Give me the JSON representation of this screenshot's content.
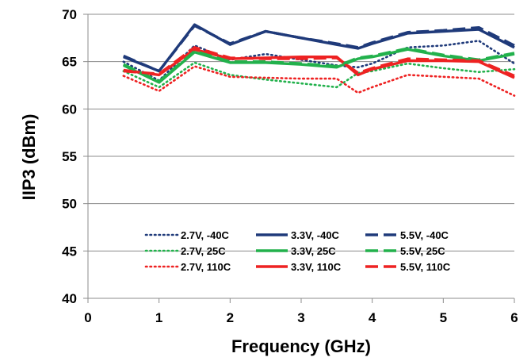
{
  "chart_data": {
    "type": "line",
    "title": "",
    "xlabel": "Frequency (GHz)",
    "ylabel": "IIP3 (dBm)",
    "xlim": [
      0,
      6
    ],
    "ylim": [
      40,
      70
    ],
    "xticks": [
      0,
      1,
      2,
      3,
      4,
      5,
      6
    ],
    "yticks": [
      40,
      45,
      50,
      55,
      60,
      65,
      70
    ],
    "xtick_labels": [
      "0",
      "1",
      "2",
      "3",
      "4",
      "5",
      "6"
    ],
    "ytick_labels": [
      "40",
      "45",
      "50",
      "55",
      "60",
      "65",
      "70"
    ],
    "grid": "horizontal",
    "legend_position": "bottom-center",
    "series": [
      {
        "name": "2.7V, -40C",
        "color": "#1F3A7A",
        "style": "dotted",
        "x": [
          0.5,
          1.0,
          1.5,
          2.0,
          2.5,
          3.0,
          3.5,
          3.8,
          4.0,
          4.5,
          5.0,
          5.5,
          6.0
        ],
        "y": [
          65.0,
          63.0,
          66.7,
          65.2,
          65.8,
          65.2,
          64.6,
          64.4,
          64.8,
          66.5,
          66.7,
          67.2,
          64.8
        ]
      },
      {
        "name": "3.3V, -40C",
        "color": "#1F3A7A",
        "style": "solid",
        "x": [
          0.5,
          1.0,
          1.5,
          2.0,
          2.5,
          3.0,
          3.5,
          3.8,
          4.0,
          4.5,
          5.0,
          5.5,
          6.0
        ],
        "y": [
          65.5,
          64.0,
          68.9,
          66.8,
          68.2,
          67.5,
          66.8,
          66.4,
          66.9,
          68.0,
          68.2,
          68.4,
          66.5
        ]
      },
      {
        "name": "5.5V, -40C",
        "color": "#1F3A7A",
        "style": "dashed",
        "x": [
          0.5,
          1.0,
          1.5,
          2.0,
          2.5,
          3.0,
          3.5,
          3.8,
          4.0,
          4.5,
          5.0,
          5.5,
          6.0
        ],
        "y": [
          65.6,
          64.0,
          68.8,
          66.9,
          68.2,
          67.5,
          66.9,
          66.5,
          67.0,
          68.1,
          68.3,
          68.6,
          66.7
        ]
      },
      {
        "name": "2.7V, 25C",
        "color": "#22B14C",
        "style": "dotted",
        "x": [
          0.5,
          1.0,
          1.5,
          2.0,
          2.5,
          3.0,
          3.5,
          3.8,
          4.0,
          4.5,
          5.0,
          5.5,
          6.0
        ],
        "y": [
          64.0,
          62.3,
          64.9,
          63.6,
          63.1,
          62.7,
          62.3,
          63.8,
          64.0,
          64.8,
          64.3,
          63.9,
          64.2
        ]
      },
      {
        "name": "3.3V, 25C",
        "color": "#22B14C",
        "style": "solid",
        "x": [
          0.5,
          1.0,
          1.5,
          2.0,
          2.5,
          3.0,
          3.5,
          3.8,
          4.0,
          4.5,
          5.0,
          5.5,
          6.0
        ],
        "y": [
          64.6,
          62.8,
          66.0,
          64.9,
          64.9,
          64.7,
          64.4,
          65.3,
          65.5,
          66.3,
          65.6,
          65.1,
          65.8
        ]
      },
      {
        "name": "5.5V, 25C",
        "color": "#22B14C",
        "style": "dashed",
        "x": [
          0.5,
          1.0,
          1.5,
          2.0,
          2.5,
          3.0,
          3.5,
          3.8,
          4.0,
          4.5,
          5.0,
          5.5,
          6.0
        ],
        "y": [
          64.7,
          62.9,
          66.1,
          65.0,
          65.0,
          64.8,
          64.5,
          65.4,
          65.6,
          66.4,
          65.7,
          65.2,
          65.9
        ]
      },
      {
        "name": "2.7V, 110C",
        "color": "#EE2222",
        "style": "dotted",
        "x": [
          0.5,
          1.0,
          1.5,
          2.0,
          2.5,
          3.0,
          3.5,
          3.8,
          4.0,
          4.5,
          5.0,
          5.5,
          6.0
        ],
        "y": [
          63.5,
          61.9,
          64.5,
          63.4,
          63.3,
          63.2,
          63.2,
          61.7,
          62.3,
          63.6,
          63.4,
          63.2,
          61.4
        ]
      },
      {
        "name": "3.3V, 110C",
        "color": "#EE2222",
        "style": "solid",
        "x": [
          0.5,
          1.0,
          1.5,
          2.0,
          2.5,
          3.0,
          3.5,
          3.8,
          4.0,
          4.5,
          5.0,
          5.5,
          6.0
        ],
        "y": [
          64.1,
          63.6,
          66.3,
          65.3,
          65.4,
          65.5,
          65.5,
          63.6,
          64.2,
          65.1,
          65.1,
          65.0,
          63.3
        ]
      },
      {
        "name": "5.5V, 110C",
        "color": "#EE2222",
        "style": "dashed",
        "x": [
          0.5,
          1.0,
          1.5,
          2.0,
          2.5,
          3.0,
          3.5,
          3.8,
          4.0,
          4.5,
          5.0,
          5.5,
          6.0
        ],
        "y": [
          64.0,
          63.7,
          66.5,
          65.4,
          65.3,
          65.3,
          65.4,
          63.8,
          64.3,
          65.3,
          65.2,
          65.1,
          63.5
        ]
      }
    ]
  }
}
